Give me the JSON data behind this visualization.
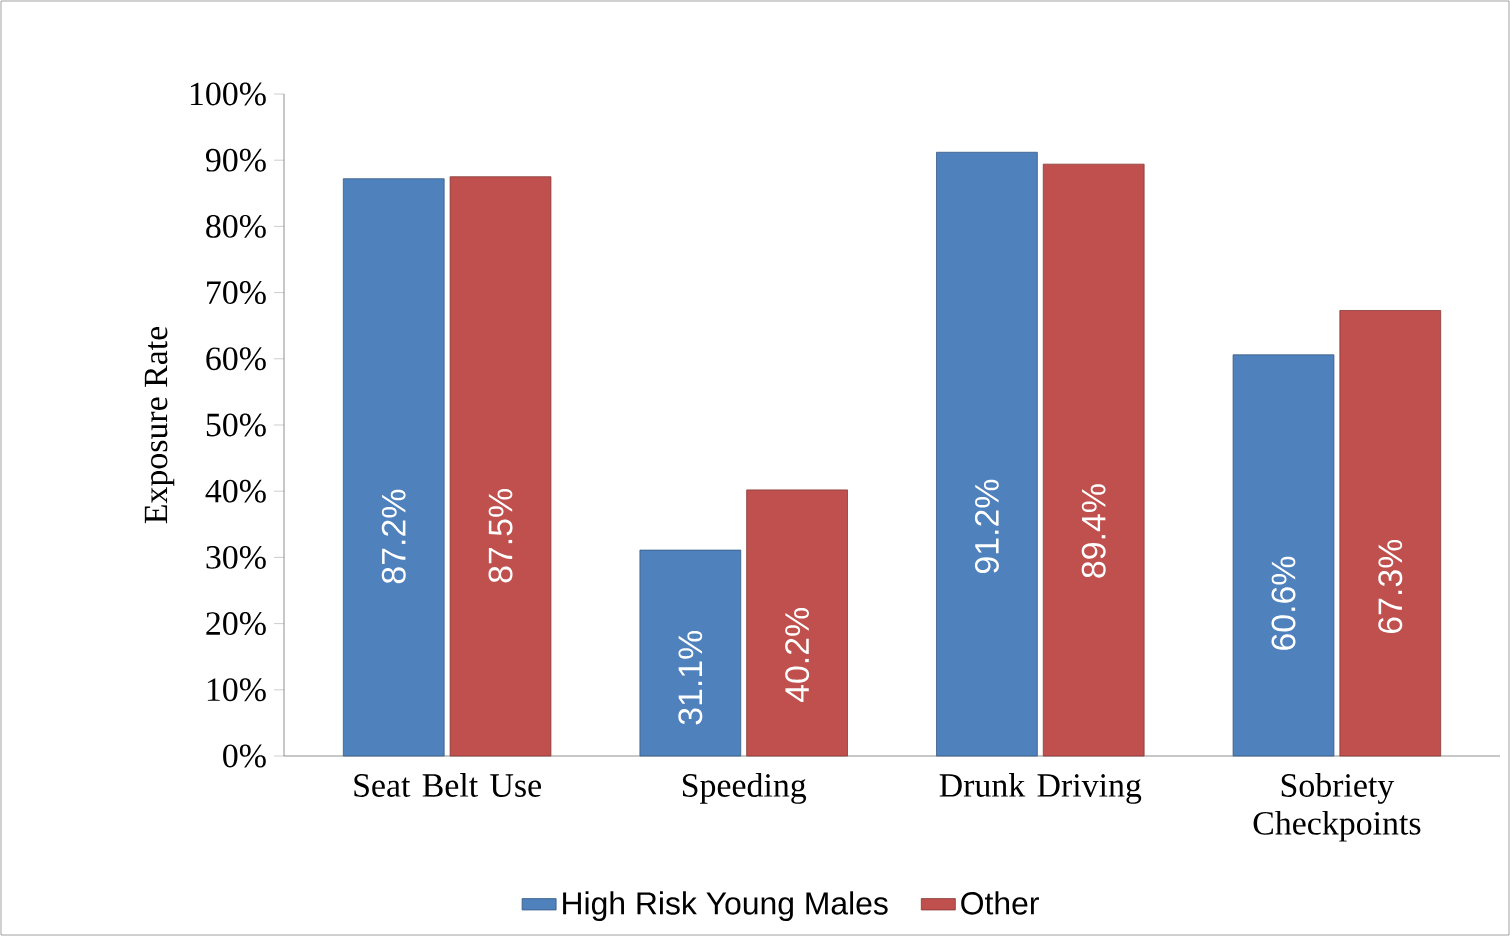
{
  "chart_data": {
    "type": "bar",
    "ylabel": "Exposure Rate",
    "categories": [
      "Seat Belt Use",
      "Speeding",
      "Drunk Driving",
      "Sobriety Checkpoints"
    ],
    "series": [
      {
        "name": "High Risk Young Males",
        "color": "#4f81bd",
        "values": [
          87.2,
          31.1,
          91.2,
          60.6
        ],
        "value_labels": [
          "87.2%",
          "31.1%",
          "91.2%",
          "60.6%"
        ]
      },
      {
        "name": "Other",
        "color": "#c0504d",
        "values": [
          87.5,
          40.2,
          89.4,
          67.3
        ],
        "value_labels": [
          "87.5%",
          "40.2%",
          "89.4%",
          "67.3%"
        ]
      }
    ],
    "ylim": [
      0,
      100
    ],
    "yticks": [
      {
        "value": 0,
        "label": "0%"
      },
      {
        "value": 10,
        "label": "10%"
      },
      {
        "value": 20,
        "label": "20%"
      },
      {
        "value": 30,
        "label": "30%"
      },
      {
        "value": 40,
        "label": "40%"
      },
      {
        "value": 50,
        "label": "50%"
      },
      {
        "value": 60,
        "label": "60%"
      },
      {
        "value": 70,
        "label": "70%"
      },
      {
        "value": 80,
        "label": "80%"
      },
      {
        "value": 90,
        "label": "90%"
      },
      {
        "value": 100,
        "label": "100%"
      }
    ],
    "legend": "bottom"
  }
}
